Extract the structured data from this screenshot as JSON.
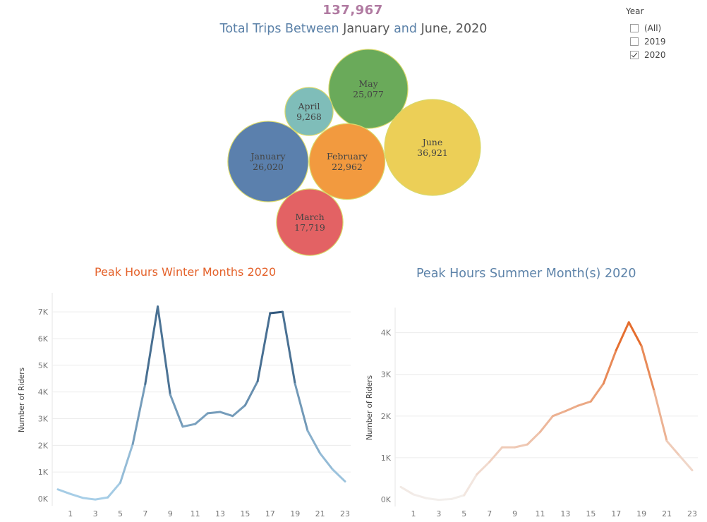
{
  "header": {
    "total": "137,967",
    "title_prefix": "Total Trips Between",
    "title_month1": "January",
    "title_and": "and",
    "title_month2": "June, 2020"
  },
  "filter": {
    "title": "Year",
    "options": [
      {
        "label": "(All)",
        "checked": false
      },
      {
        "label": "2019",
        "checked": false
      },
      {
        "label": "2020",
        "checked": true
      }
    ]
  },
  "chart_data": [
    {
      "type": "bubble",
      "title": "",
      "bubbles": [
        {
          "month": "May",
          "trips": 25077,
          "trips_label": "25,077",
          "color": "#6aaa5a"
        },
        {
          "month": "April",
          "trips": 9268,
          "trips_label": "9,268",
          "color": "#7fbdb9"
        },
        {
          "month": "June",
          "trips": 36921,
          "trips_label": "36,921",
          "color": "#eccf57"
        },
        {
          "month": "January",
          "trips": 26020,
          "trips_label": "26,020",
          "color": "#5b80ad"
        },
        {
          "month": "February",
          "trips": 22962,
          "trips_label": "22,962",
          "color": "#f29a3f"
        },
        {
          "month": "March",
          "trips": 17719,
          "trips_label": "17,719",
          "color": "#e36264"
        }
      ]
    },
    {
      "type": "line",
      "title": "Peak Hours Winter Months 2020",
      "title_color": "#e4622b",
      "ylabel": "Number of Riders",
      "xlabel": "",
      "x_ticks": [
        1,
        3,
        5,
        7,
        9,
        11,
        13,
        15,
        17,
        19,
        21,
        23
      ],
      "y_ticks": [
        0,
        1000,
        2000,
        3000,
        4000,
        5000,
        6000,
        7000
      ],
      "y_tick_labels": [
        "0K",
        "1K",
        "2K",
        "3K",
        "4K",
        "5K",
        "6K",
        "7K"
      ],
      "ylim": [
        0,
        7400
      ],
      "color_low": "#a8cfe8",
      "color_high": "#2d5479",
      "grid": true,
      "series": [
        {
          "x": [
            0,
            1,
            2,
            3,
            4,
            5,
            6,
            7,
            8,
            9,
            10,
            11,
            12,
            13,
            14,
            15,
            16,
            17,
            18,
            19,
            20,
            21,
            22,
            23
          ],
          "values": [
            350,
            180,
            30,
            -30,
            50,
            600,
            2050,
            4300,
            7200,
            3900,
            2700,
            2800,
            3200,
            3250,
            3100,
            3500,
            4400,
            6950,
            7000,
            4300,
            2550,
            1700,
            1100,
            650
          ]
        }
      ]
    },
    {
      "type": "line",
      "title": "Peak Hours Summer Month(s) 2020",
      "title_color": "#5d83a9",
      "ylabel": "Number of Riders",
      "xlabel": "",
      "x_ticks": [
        1,
        3,
        5,
        7,
        9,
        11,
        13,
        15,
        17,
        19,
        21,
        23
      ],
      "y_ticks": [
        0,
        1000,
        2000,
        3000,
        4000
      ],
      "y_tick_labels": [
        "0K",
        "1K",
        "2K",
        "3K",
        "4K"
      ],
      "ylim": [
        0,
        4400
      ],
      "color_low": "#f3efec",
      "color_high": "#e4631f",
      "grid": true,
      "series": [
        {
          "x": [
            0,
            1,
            2,
            3,
            4,
            5,
            6,
            7,
            8,
            9,
            10,
            11,
            12,
            13,
            14,
            15,
            16,
            17,
            18,
            19,
            20,
            21,
            22,
            23
          ],
          "values": [
            300,
            120,
            30,
            -10,
            10,
            100,
            600,
            900,
            1250,
            1250,
            1320,
            1620,
            2000,
            2120,
            2250,
            2350,
            2780,
            3580,
            4250,
            3680,
            2600,
            1400,
            1050,
            700
          ]
        }
      ]
    }
  ]
}
